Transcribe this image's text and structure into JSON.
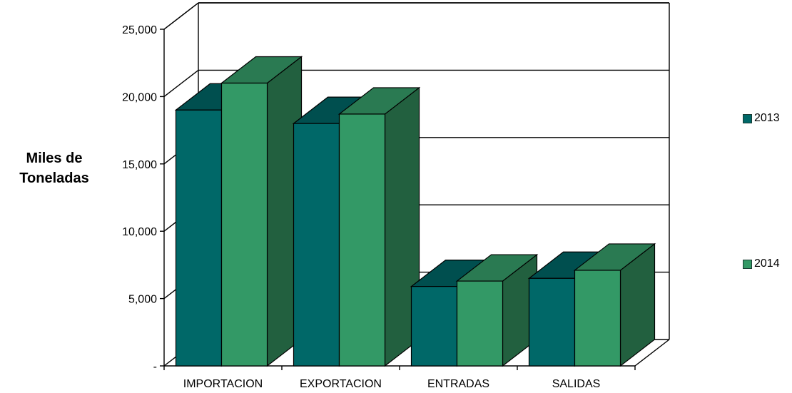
{
  "chart_data": {
    "type": "bar",
    "title": "",
    "xlabel": "",
    "ylabel_lines": [
      "Miles de",
      "Toneladas"
    ],
    "categories": [
      "IMPORTACION",
      "EXPORTACION",
      "ENTRADAS",
      "SALIDAS"
    ],
    "series": [
      {
        "name": "2013",
        "values": [
          19000,
          18000,
          5900,
          6500
        ]
      },
      {
        "name": "2014",
        "values": [
          21000,
          18700,
          6300,
          7100
        ]
      }
    ],
    "ylim": [
      0,
      25000
    ],
    "yticks": [
      0,
      5000,
      10000,
      15000,
      20000,
      25000
    ],
    "ytick_labels": [
      "-",
      "5,000",
      "10,000",
      "15,000",
      "20,000",
      "25,000"
    ],
    "grid": true,
    "three_d": true,
    "legend_position": "right",
    "colors": {
      "2013": {
        "front": "#006868",
        "top": "#004f4f",
        "side": "#005a5a"
      },
      "2014": {
        "front": "#339966",
        "top": "#2a7a52",
        "side": "#22603f"
      }
    }
  }
}
